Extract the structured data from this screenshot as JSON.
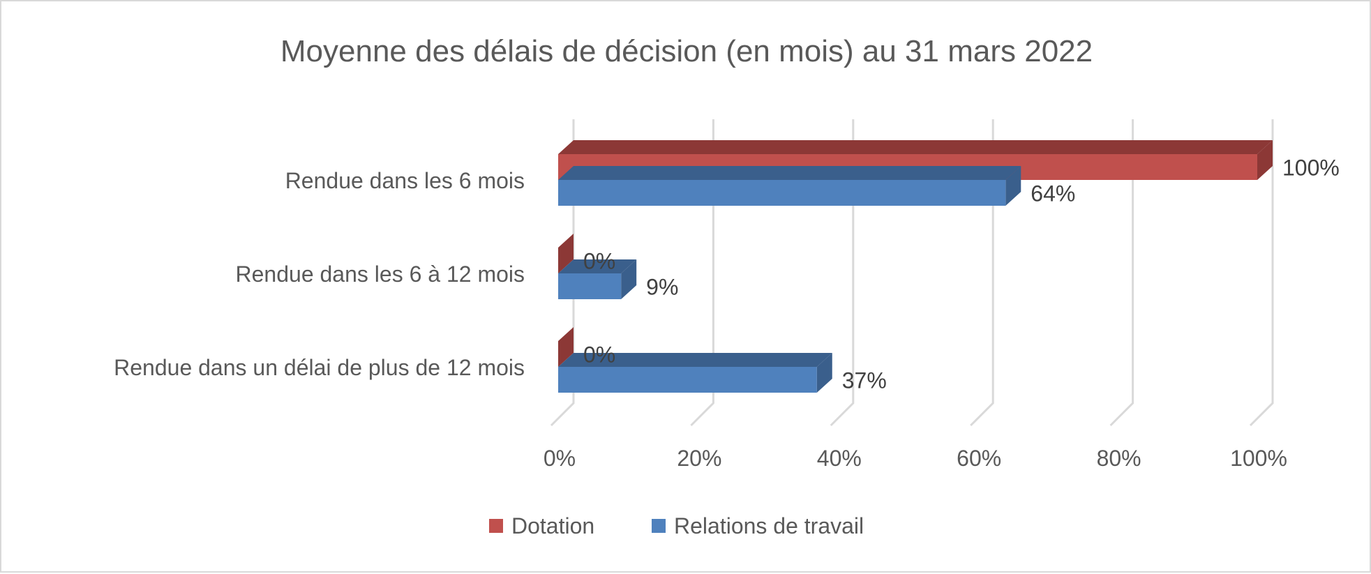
{
  "chart_data": {
    "type": "bar",
    "orientation": "horizontal",
    "style": "3d-clustered",
    "title": "Moyenne des délais de décision (en mois) au 31 mars 2022",
    "categories": [
      "Rendue dans les 6 mois",
      "Rendue dans les 6 à 12 mois",
      "Rendue dans un délai de plus de 12 mois"
    ],
    "series": [
      {
        "name": "Dotation",
        "values": [
          100,
          0,
          0
        ],
        "labels": [
          "100%",
          "0%",
          "0%"
        ],
        "color": "#c0504d",
        "dark": "#8c3836"
      },
      {
        "name": "Relations de travail",
        "values": [
          64,
          9,
          37
        ],
        "labels": [
          "64%",
          "9%",
          "37%"
        ],
        "color": "#4f81bd",
        "dark": "#3a5f8c"
      }
    ],
    "xlim": [
      0,
      100
    ],
    "xticks": [
      "0%",
      "20%",
      "40%",
      "60%",
      "80%",
      "100%"
    ],
    "grid": true,
    "legend": "bottom"
  }
}
